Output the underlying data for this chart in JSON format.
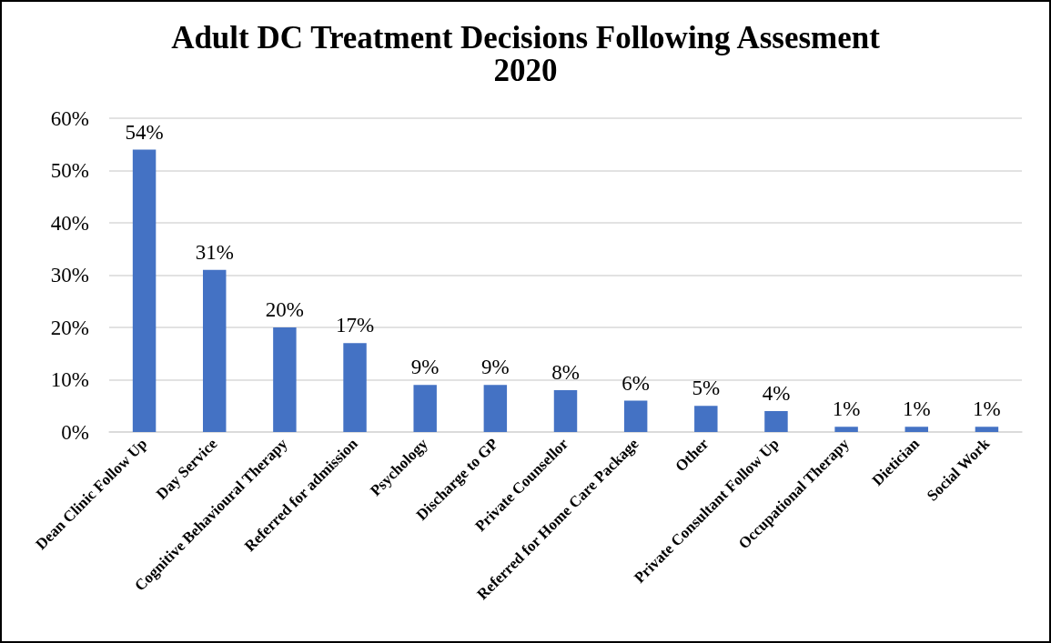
{
  "chart_data": {
    "type": "bar",
    "title": "Adult DC Treatment Decisions Following Assesment 2020",
    "categories": [
      "Dean Clinic Follow Up",
      "Day Service",
      "Cognitive Behavioural Therapy",
      "Referred for admission",
      "Psychology",
      "Discharge to GP",
      "Private Counsellor",
      "Referred for Home Care Package",
      "Other",
      "Private Consultant Follow Up",
      "Occupational Therapy",
      "Dietician",
      "Social Work"
    ],
    "values": [
      54,
      31,
      20,
      17,
      9,
      9,
      8,
      6,
      5,
      4,
      1,
      1,
      1
    ],
    "value_labels": [
      "54%",
      "31%",
      "20%",
      "17%",
      "9%",
      "9%",
      "8%",
      "6%",
      "5%",
      "4%",
      "1%",
      "1%",
      "1%"
    ],
    "color": "#4472c4",
    "ylim": [
      0,
      60
    ],
    "yticks": [
      {
        "value": 0,
        "label": "0%"
      },
      {
        "value": 10,
        "label": "10%"
      },
      {
        "value": 20,
        "label": "20%"
      },
      {
        "value": 30,
        "label": "30%"
      },
      {
        "value": 40,
        "label": "40%"
      },
      {
        "value": 50,
        "label": "50%"
      },
      {
        "value": 60,
        "label": "60%"
      }
    ],
    "grid": "y"
  }
}
